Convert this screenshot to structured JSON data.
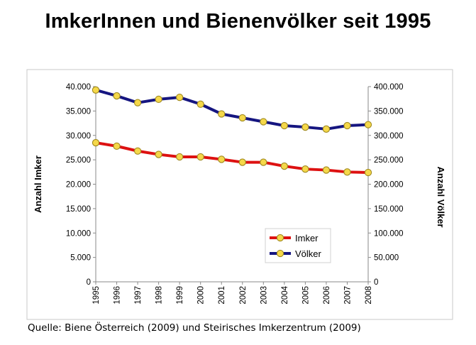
{
  "title": "ImkerInnen und Bienenvölker seit 1995",
  "source": "Quelle: Biene Österreich (2009) und Steirisches Imkerzentrum (2009)",
  "chart_data": {
    "type": "line",
    "title": "",
    "x": [
      "1995",
      "1996",
      "1997",
      "1998",
      "1999",
      "2000",
      "2001",
      "2002",
      "2003",
      "2004",
      "2005",
      "2006",
      "2007",
      "2008"
    ],
    "ylabel_left": "Anzahl Imker",
    "ylabel_right": "Anzahl Völker",
    "ylim_left": [
      0,
      40000
    ],
    "ylim_right": [
      0,
      400000
    ],
    "y_ticks_left": [
      "0",
      "5.000",
      "10.000",
      "15.000",
      "20.000",
      "25.000",
      "30.000",
      "35.000",
      "40.000"
    ],
    "y_ticks_right": [
      "0",
      "50.000",
      "100.000",
      "150.000",
      "200.000",
      "250.000",
      "300.000",
      "350.000",
      "400.000"
    ],
    "grid": false,
    "legend_position": "bottom-right",
    "series": [
      {
        "name": "Imker",
        "axis": "left",
        "color": "#dd1111",
        "marker_color": "#f5d84a",
        "values": [
          28500,
          27800,
          26800,
          26100,
          25600,
          25600,
          25100,
          24500,
          24500,
          23700,
          23100,
          22900,
          22500,
          22400
        ]
      },
      {
        "name": "Völker",
        "axis": "right",
        "color": "#151580",
        "marker_color": "#f5d84a",
        "values": [
          393000,
          381000,
          367000,
          374000,
          378000,
          364000,
          344000,
          336000,
          328000,
          320000,
          317000,
          313000,
          320000,
          322000
        ]
      }
    ]
  }
}
